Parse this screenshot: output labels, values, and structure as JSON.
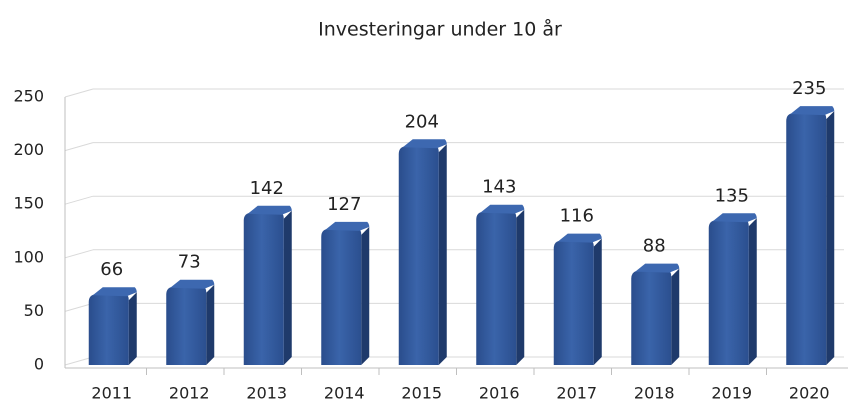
{
  "chart_data": {
    "type": "bar",
    "title": "Investeringar under 10 år",
    "categories": [
      "2011",
      "2012",
      "2013",
      "2014",
      "2015",
      "2016",
      "2017",
      "2018",
      "2019",
      "2020"
    ],
    "values": [
      66,
      73,
      142,
      127,
      204,
      143,
      116,
      88,
      135,
      235
    ],
    "color": "#2f5597",
    "ylim": [
      0,
      250
    ],
    "yticks": [
      0,
      50,
      100,
      150,
      200,
      250
    ],
    "grid": true
  }
}
